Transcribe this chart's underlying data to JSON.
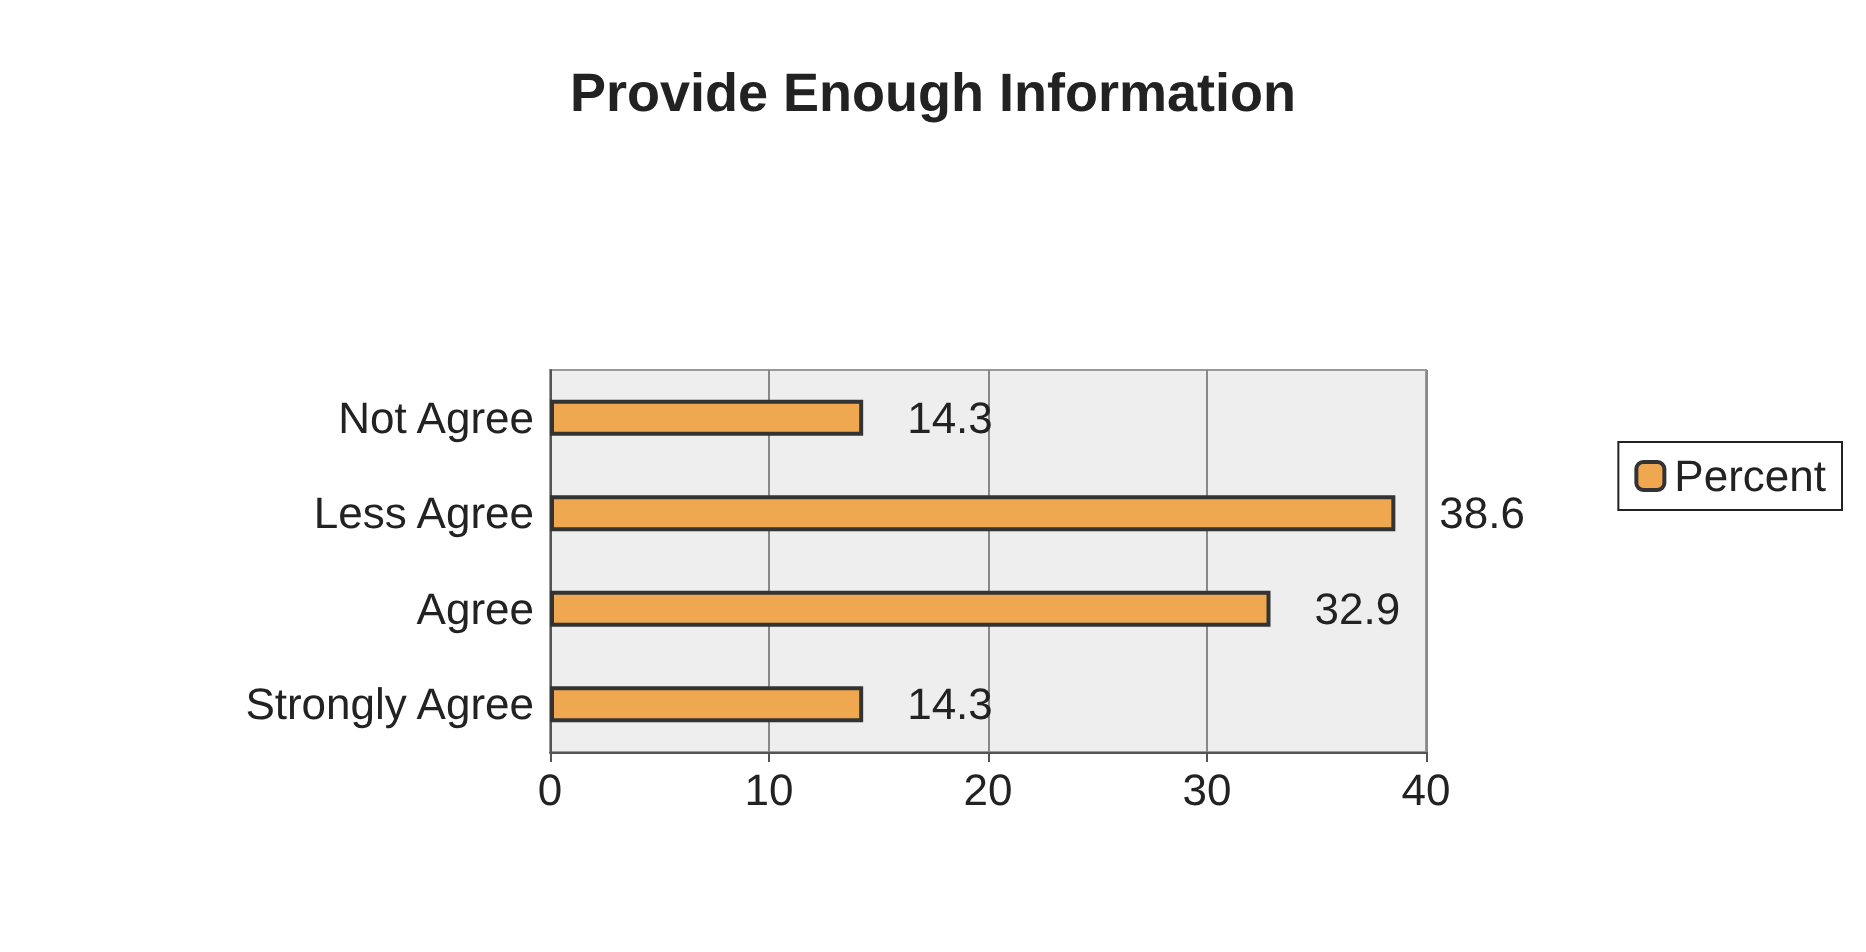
{
  "chart_data": {
    "type": "bar",
    "title": "Provide Enough Information",
    "orientation": "horizontal",
    "categories": [
      "Not Agree",
      "Less Agree",
      "Agree",
      "Strongly Agree"
    ],
    "series": [
      {
        "name": "Percent",
        "color": "#f0a850",
        "values": [
          14.3,
          38.6,
          32.9,
          14.3
        ]
      }
    ],
    "xlim": [
      0,
      40
    ],
    "xticks": [
      0,
      10,
      20,
      30,
      40
    ],
    "grid": "x",
    "legend": "right",
    "data_labels": true
  }
}
